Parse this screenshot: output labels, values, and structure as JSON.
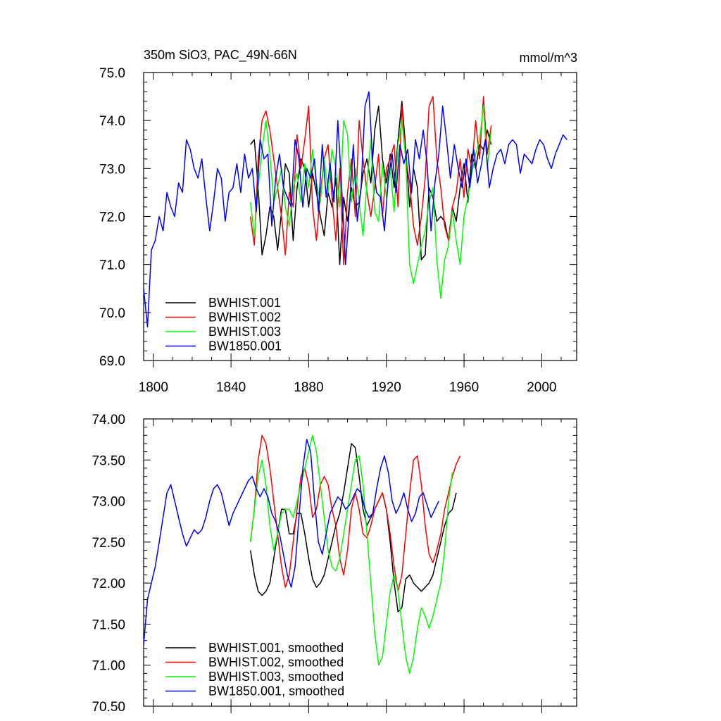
{
  "chart_data": [
    {
      "type": "line",
      "title": "350m SiO3, PAC_49N-66N",
      "units": "mmol/m^3",
      "xlabel": "",
      "ylabel": "",
      "xlim": [
        1795,
        2018
      ],
      "ylim": [
        69.0,
        75.0
      ],
      "xticks": [
        1800,
        1840,
        1880,
        1920,
        1960,
        2000
      ],
      "yticks": [
        "69.0",
        "70.0",
        "71.0",
        "72.0",
        "73.0",
        "74.0",
        "75.0"
      ],
      "legend_position": "bottom-left",
      "grid": false,
      "series": [
        {
          "name": "BWHIST.001",
          "color": "#000000",
          "x_start": 1850,
          "x_step": 2,
          "values": [
            73.5,
            73.6,
            72.6,
            71.2,
            71.6,
            72.2,
            72.0,
            71.3,
            72.1,
            73.1,
            72.9,
            71.5,
            72.6,
            73.2,
            73.0,
            72.2,
            72.9,
            72.5,
            72.0,
            71.6,
            72.5,
            72.2,
            72.8,
            71.0,
            72.4,
            71.9,
            72.6,
            72.2,
            72.3,
            72.9,
            73.2,
            72.7,
            73.8,
            74.3,
            73.2,
            72.7,
            73.3,
            72.6,
            73.6,
            74.4,
            73.4,
            72.2,
            73.0,
            72.6,
            71.1,
            71.2,
            72.6,
            72.4,
            71.9,
            72.0,
            71.9,
            71.5,
            72.2,
            71.9,
            72.6,
            73.1,
            72.3,
            73.3,
            73.0,
            73.5,
            73.4,
            73.8,
            73.5
          ]
        },
        {
          "name": "BWHIST.002",
          "color": "#ff0000",
          "x_start": 1850,
          "x_step": 2,
          "values": [
            72.0,
            71.4,
            73.2,
            74.0,
            74.2,
            73.8,
            73.2,
            72.6,
            72.0,
            71.2,
            72.5,
            72.2,
            73.7,
            73.0,
            73.6,
            74.3,
            72.2,
            71.5,
            72.5,
            73.2,
            73.5,
            72.4,
            71.5,
            73.0,
            71.0,
            72.5,
            73.2,
            72.0,
            74.0,
            73.2,
            72.5,
            72.0,
            72.6,
            73.3,
            72.0,
            73.0,
            73.2,
            73.5,
            72.2,
            74.3,
            73.2,
            72.7,
            71.8,
            71.4,
            72.0,
            72.8,
            74.3,
            74.5,
            73.2,
            72.6,
            71.8,
            71.5,
            72.2,
            72.5,
            73.2,
            72.4,
            73.4,
            73.0,
            74.0,
            73.2,
            74.5,
            73.3,
            73.9
          ]
        },
        {
          "name": "BWHIST.003",
          "color": "#00ff00",
          "x_start": 1850,
          "x_step": 2,
          "values": [
            72.3,
            71.6,
            72.6,
            73.4,
            74.0,
            73.3,
            72.3,
            72.6,
            73.0,
            72.2,
            71.8,
            72.6,
            72.9,
            72.3,
            73.1,
            72.6,
            73.4,
            72.7,
            72.3,
            73.2,
            72.5,
            73.4,
            73.0,
            72.2,
            74.0,
            73.7,
            72.3,
            73.0,
            72.3,
            71.6,
            72.7,
            73.6,
            72.1,
            71.9,
            73.1,
            72.4,
            73.0,
            72.1,
            73.5,
            74.0,
            73.2,
            71.0,
            70.6,
            71.0,
            71.4,
            71.7,
            72.3,
            72.6,
            71.1,
            70.3,
            71.1,
            71.4,
            72.1,
            71.5,
            71.0,
            72.0,
            72.4,
            72.9,
            73.3,
            73.6,
            74.3,
            73.0,
            73.8
          ]
        },
        {
          "name": "BW1850.001",
          "color": "#0000ff",
          "x_start": 1795,
          "x_step": 2,
          "values": [
            70.5,
            69.7,
            71.3,
            71.5,
            72.0,
            71.7,
            72.5,
            72.2,
            72.0,
            72.7,
            72.5,
            73.6,
            73.4,
            73.0,
            72.8,
            73.2,
            72.4,
            71.7,
            72.3,
            73.0,
            72.8,
            71.9,
            72.5,
            72.6,
            73.1,
            72.5,
            73.3,
            72.8,
            73.0,
            72.1,
            73.6,
            73.2,
            73.3,
            71.8,
            72.8,
            73.3,
            72.6,
            72.4,
            72.2,
            73.6,
            73.2,
            72.2,
            73.0,
            72.8,
            73.2,
            72.1,
            73.5,
            72.4,
            73.1,
            72.3,
            74.0,
            72.6,
            71.0,
            72.2,
            73.5,
            71.9,
            72.6,
            74.3,
            74.6,
            73.1,
            72.5,
            72.4,
            71.7,
            72.8,
            73.3,
            72.5,
            73.5,
            73.1,
            73.4,
            72.5,
            73.6,
            73.2,
            73.8,
            73.1,
            71.7,
            72.7,
            73.3,
            74.3,
            73.6,
            72.8,
            73.5,
            73.0,
            72.6,
            73.2,
            72.6,
            73.4,
            72.7,
            73.1,
            73.6,
            72.6,
            73.0,
            73.3,
            73.4,
            73.1,
            73.5,
            73.6,
            73.5,
            72.9,
            73.3,
            73.2,
            73.1,
            73.4,
            73.6,
            73.5,
            73.2,
            73.0,
            73.3,
            73.5,
            73.7,
            73.6
          ]
        }
      ]
    },
    {
      "type": "line",
      "title": "",
      "xlabel": "",
      "ylabel": "",
      "xlim": [
        1795,
        2018
      ],
      "ylim": [
        70.5,
        74.0
      ],
      "xticks": [
        1800,
        1840,
        1880,
        1920,
        1960,
        2000
      ],
      "yticks": [
        "70.50",
        "71.00",
        "71.50",
        "72.00",
        "72.50",
        "73.00",
        "73.50",
        "74.00"
      ],
      "legend_position": "bottom-left",
      "grid": false,
      "series": [
        {
          "name": "BWHIST.001, smoothed",
          "color": "#000000",
          "x_start": 1850,
          "x_step": 2,
          "values": [
            72.4,
            72.1,
            71.9,
            71.85,
            71.9,
            72.0,
            72.3,
            72.6,
            72.9,
            72.9,
            72.6,
            72.6,
            72.85,
            72.85,
            72.6,
            72.3,
            72.05,
            71.95,
            72.0,
            72.1,
            72.3,
            72.5,
            72.7,
            72.85,
            73.1,
            73.4,
            73.7,
            73.65,
            73.3,
            72.9,
            72.7,
            72.8,
            72.9,
            73.0,
            73.1,
            72.9,
            72.5,
            72.0,
            71.65,
            71.7,
            72.05,
            72.1,
            72.0,
            71.95,
            71.9,
            71.95,
            72.0,
            72.1,
            72.3,
            72.5,
            72.7,
            72.85,
            72.9,
            73.1
          ]
        },
        {
          "name": "BWHIST.002, smoothed",
          "color": "#ff0000",
          "x_start": 1850,
          "x_step": 2,
          "values": [
            72.5,
            72.9,
            73.5,
            73.8,
            73.7,
            73.4,
            73.0,
            72.6,
            72.2,
            71.95,
            72.1,
            72.5,
            72.9,
            73.3,
            73.4,
            73.2,
            72.8,
            72.9,
            73.2,
            73.3,
            73.2,
            72.9,
            72.7,
            72.3,
            72.1,
            72.4,
            72.9,
            73.1,
            72.9,
            72.6,
            72.55,
            72.7,
            72.9,
            73.0,
            73.1,
            72.9,
            72.6,
            72.2,
            71.9,
            72.1,
            72.6,
            73.1,
            73.5,
            73.55,
            73.2,
            72.7,
            72.35,
            72.25,
            72.4,
            72.6,
            72.9,
            73.1,
            73.3,
            73.45,
            73.55
          ]
        },
        {
          "name": "BWHIST.003, smoothed",
          "color": "#00ff00",
          "x_start": 1850,
          "x_step": 2,
          "values": [
            72.5,
            72.9,
            73.3,
            73.5,
            73.2,
            72.7,
            72.4,
            72.6,
            72.85,
            72.9,
            72.9,
            72.8,
            73.0,
            73.2,
            73.4,
            73.6,
            73.8,
            73.6,
            73.2,
            72.8,
            72.4,
            72.2,
            72.15,
            72.3,
            72.6,
            72.9,
            73.2,
            73.5,
            73.55,
            73.2,
            72.6,
            72.0,
            71.4,
            71.0,
            71.1,
            71.5,
            71.9,
            72.1,
            71.9,
            71.5,
            71.1,
            70.9,
            71.1,
            71.45,
            71.7,
            71.6,
            71.45,
            71.6,
            71.8,
            72.0,
            72.4,
            73.0,
            73.35
          ]
        },
        {
          "name": "BW1850.001, smoothed",
          "color": "#0000ff",
          "x_start": 1795,
          "x_step": 2,
          "values": [
            71.25,
            71.8,
            72.0,
            72.2,
            72.5,
            72.8,
            73.1,
            73.2,
            73.0,
            72.8,
            72.6,
            72.45,
            72.55,
            72.65,
            72.6,
            72.65,
            72.8,
            73.0,
            73.15,
            73.2,
            73.1,
            72.9,
            72.7,
            72.85,
            72.95,
            73.05,
            73.15,
            73.25,
            73.3,
            73.15,
            73.05,
            73.15,
            73.05,
            72.85,
            72.75,
            72.6,
            72.35,
            72.1,
            71.95,
            72.2,
            72.8,
            73.4,
            73.75,
            73.6,
            73.0,
            72.5,
            72.35,
            72.6,
            72.85,
            72.95,
            73.05,
            73.0,
            72.9,
            72.95,
            73.05,
            73.15,
            73.1,
            72.9,
            72.8,
            72.85,
            73.15,
            73.4,
            73.55,
            73.35,
            73.0,
            72.85,
            72.95,
            73.1,
            72.9,
            72.75,
            72.85,
            73.05,
            73.1,
            72.95,
            72.8,
            72.9,
            73.0
          ]
        }
      ]
    }
  ]
}
